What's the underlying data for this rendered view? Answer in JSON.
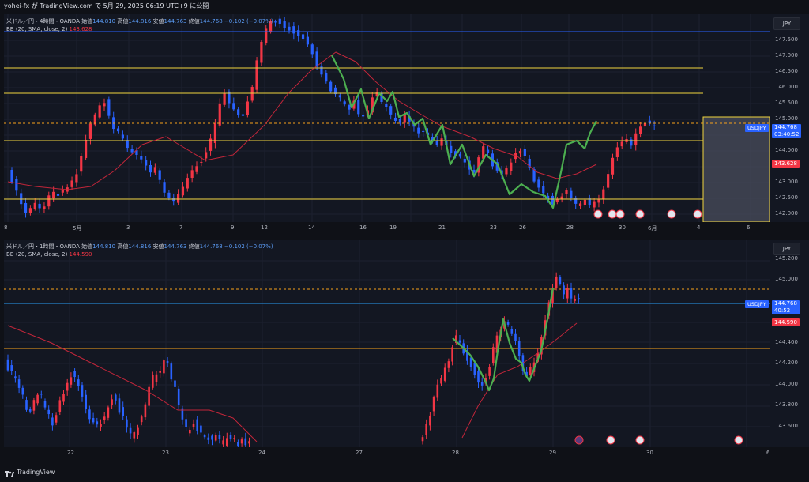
{
  "header": {
    "title": "yohei-fx が TradingView.com で 5月 29, 2025 06:19 UTC+9 に公開"
  },
  "top_chart": {
    "symbol_line": {
      "name": "米ドル／円・4時間・OANDA",
      "open_label": "始値",
      "open": "144.810",
      "high_label": "高値",
      "high": "144.816",
      "low_label": "安値",
      "low": "144.763",
      "close_label": "終値",
      "close": "144.768",
      "change": "−0.102 (−0.07%)"
    },
    "bb_line": {
      "label": "BB (20, SMA, close, 2)",
      "value": "143.628"
    },
    "currency_button": "JPY",
    "price_ticks": [
      "147.500",
      "147.000",
      "146.500",
      "146.000",
      "145.500",
      "145.000",
      "144.500",
      "144.000",
      "143.500",
      "143.000",
      "142.500",
      "142.000"
    ],
    "symbol_tag": "USDJPY",
    "last_price": "144.768",
    "countdown": "03:40:52",
    "bb_price": "143.628",
    "x_ticks": [
      "8",
      "5月",
      "3",
      "7",
      "9",
      "12",
      "14",
      "16",
      "19",
      "21",
      "23",
      "26",
      "28",
      "30",
      "6月",
      "4",
      "6"
    ],
    "colors": {
      "last_price_bg": "#2962ff",
      "bb_bg": "#f23645"
    }
  },
  "bottom_chart": {
    "symbol_line": {
      "name": "米ドル／円・1時間・OANDA",
      "open_label": "始値",
      "open": "144.810",
      "high_label": "高値",
      "high": "144.816",
      "low_label": "安値",
      "low": "144.763",
      "close_label": "終値",
      "close": "144.768",
      "change": "−0.102 (−0.07%)"
    },
    "bb_line": {
      "label": "BB (20, SMA, close, 2)",
      "value": "144.590"
    },
    "currency_button": "JPY",
    "price_ticks": [
      "145.200",
      "145.000",
      "144.400",
      "144.200",
      "144.000",
      "143.800",
      "143.600"
    ],
    "symbol_tag": "USDJPY",
    "last_price": "144.768",
    "countdown": "40:52",
    "bb_price": "144.590",
    "x_ticks": [
      "22",
      "23",
      "24",
      "27",
      "28",
      "29",
      "30",
      "6"
    ]
  },
  "footer": {
    "brand": "TradingView"
  },
  "chart_data": [
    {
      "type": "candlestick",
      "title": "米ドル／円・4時間・OANDA",
      "ylim": [
        141.8,
        148.0
      ],
      "horizontal_levels": [
        147.7,
        146.6,
        145.8,
        144.8,
        144.3,
        142.5
      ],
      "upper_legend_price": "144.768"
    },
    {
      "type": "candlestick",
      "title": "米ドル／円・1時間・OANDA",
      "ylim": [
        143.45,
        145.25
      ],
      "horizontal_levels": [
        144.93,
        144.768,
        144.35
      ]
    }
  ]
}
